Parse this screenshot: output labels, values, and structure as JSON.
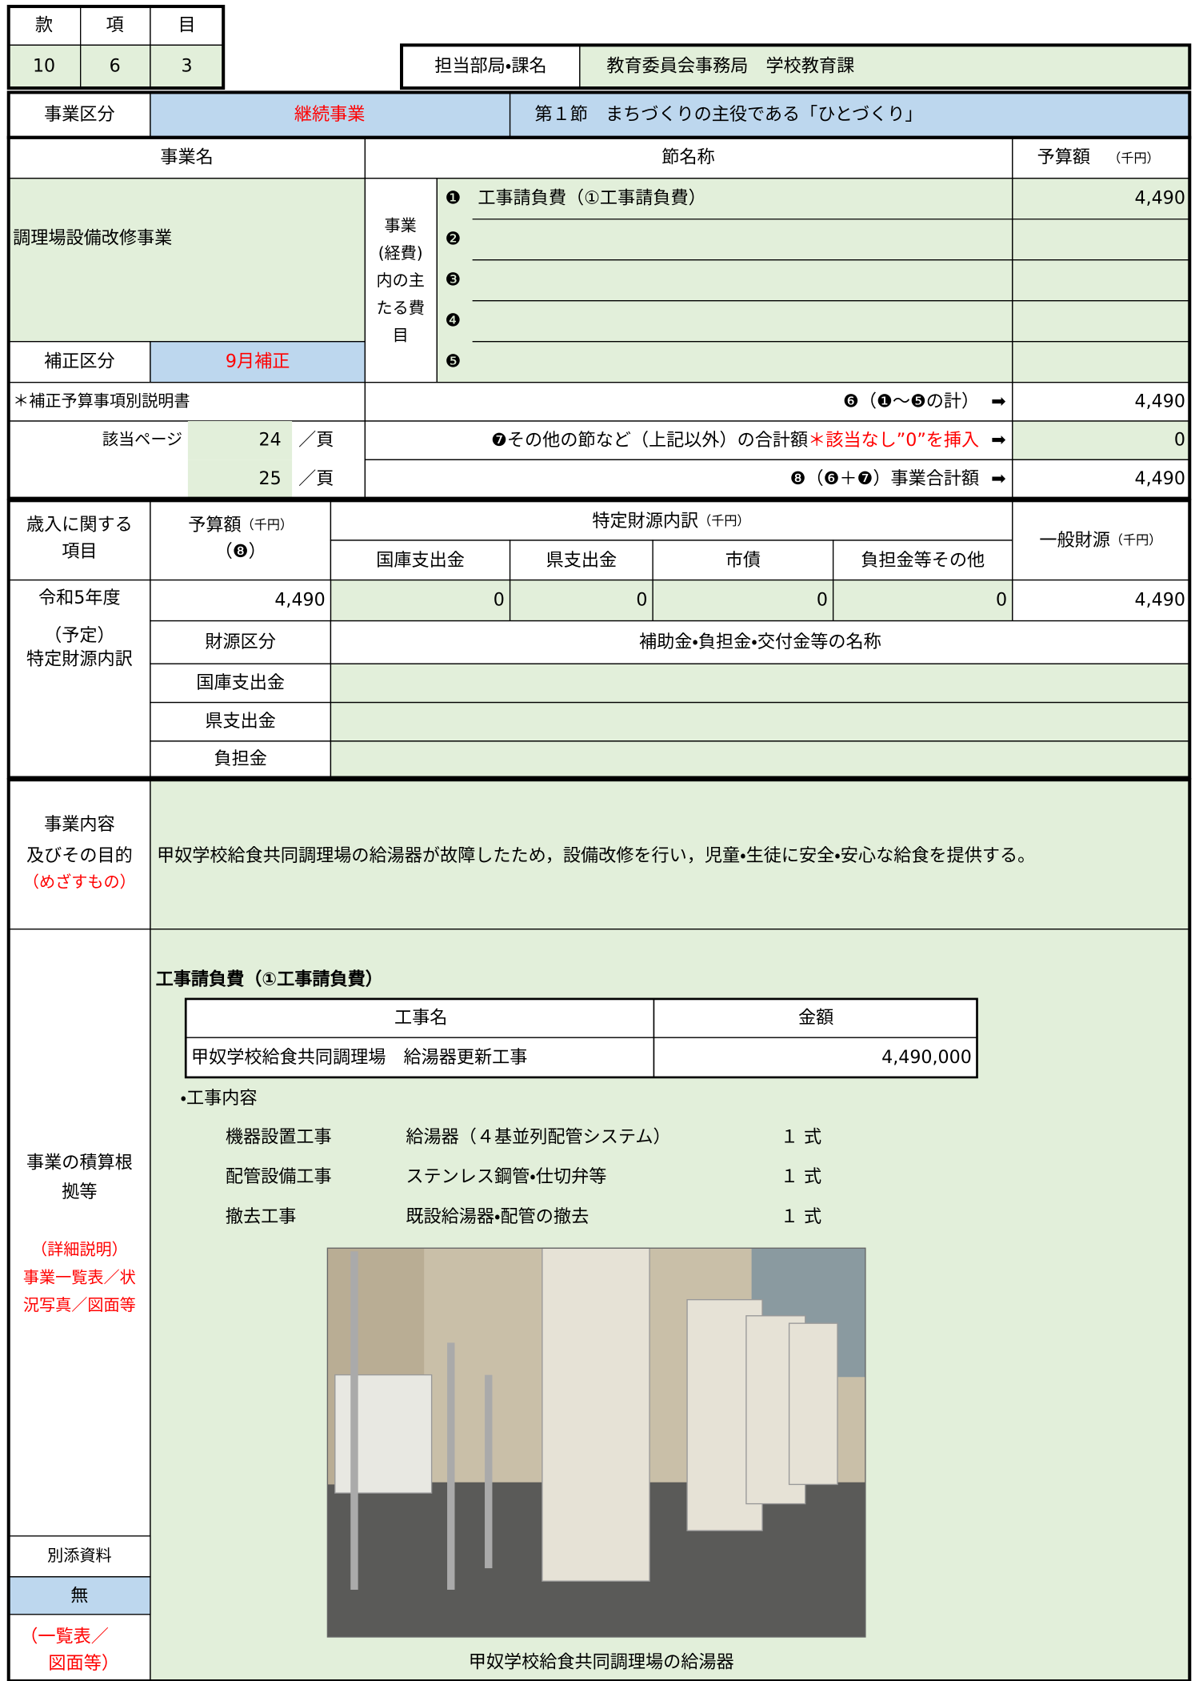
{
  "header": {
    "kan_label": "款",
    "kou_label": "項",
    "moku_label": "目",
    "kan": "10",
    "kou": "6",
    "moku": "3",
    "dept_label": "担当部局・課名",
    "dept": "教育委員会事務局　学校教育課"
  },
  "category": {
    "label": "事業区分",
    "value": "継続事業",
    "section": "第１節　まちづくりの主役である「ひとづくり」"
  },
  "budget": {
    "name_header": "事業名",
    "item_header": "節名称",
    "amount_header": "予算額",
    "unit": "（千円）",
    "project_name": "調理場設備改修事業",
    "revision_label": "補正区分",
    "revision": "9月補正",
    "main_items_label": [
      "事業",
      "(経費)",
      "内の主",
      "たる費",
      "目"
    ],
    "items": [
      {
        "marker": "❶",
        "name": "工事請負費（①工事請負費）",
        "amount": "4,490"
      },
      {
        "marker": "❷"
      },
      {
        "marker": "❸"
      },
      {
        "marker": "❹"
      },
      {
        "marker": "❺"
      }
    ],
    "note_label": "＊補正予算事項別説明書",
    "page_label": "該当ページ",
    "pages": [
      {
        "page": "24",
        "unit": "／頁"
      },
      {
        "page": "25",
        "unit": "／頁"
      }
    ],
    "arrow": "➡",
    "subtotal_label": "❻（❶～❺の計）",
    "subtotal": "4,490",
    "other_label": "❼その他の節など（上記以外）の合計額",
    "other_note": "＊該当なし”0”を挿入",
    "other": "0",
    "total_label": "❽（❻＋❼）事業合計額",
    "total": "4,490"
  },
  "revenue": {
    "label": [
      "歳入に関する",
      "項目"
    ],
    "amount_header": "予算額",
    "unit": "（千円）",
    "amount_ref": "（❽）",
    "specific_header": "特定財源内訳",
    "specific_columns": [
      "国庫支出金",
      "県支出金",
      "市債",
      "負担金等その他"
    ],
    "general_header": "一般財源",
    "year": "令和5年度",
    "amount": "4,490",
    "specific_values": [
      "0",
      "0",
      "0",
      "0"
    ],
    "general": "4,490",
    "sources_label": [
      "（予定）",
      "特定財源内訳"
    ],
    "source_type_header": "財源区分",
    "source_name_header": "補助金・負担金・交付金等の名称",
    "source_rows": [
      "国庫支出金",
      "県支出金",
      "負担金"
    ]
  },
  "purpose": {
    "label": [
      "事業内容",
      "及びその目的"
    ],
    "sub_label": "（めざすもの）",
    "text": "甲奴学校給食共同調理場の給湯器が故障したため，設備改修を行い，児童・生徒に安全・安心な給食を提供する。"
  },
  "basis": {
    "label": [
      "事業の積算根",
      "拠等"
    ],
    "detail_label": [
      "（詳細説明）",
      "事業一覧表／状",
      "況写真／図面等"
    ],
    "attachment_label": "別添資料",
    "attachment": "無",
    "attachment_note": [
      "（一覧表／",
      "図面等）"
    ],
    "title": "工事請負費（①工事請負費）",
    "table": {
      "headers": [
        "工事名",
        "金額"
      ],
      "rows": [
        [
          "甲奴学校給食共同調理場　給湯器更新工事",
          "4,490,000"
        ]
      ]
    },
    "content_label": "・工事内容",
    "content": [
      [
        "機器設置工事",
        "給湯器（４基並列配管システム）",
        "１ 式"
      ],
      [
        "配管設備工事",
        "ステンレス鋼管・仕切弁等",
        "１ 式"
      ],
      [
        "撤去工事",
        "既設給湯器・配管の撤去",
        "１ 式"
      ]
    ],
    "photo_caption": "甲奴学校給食共同調理場の給湯器"
  }
}
